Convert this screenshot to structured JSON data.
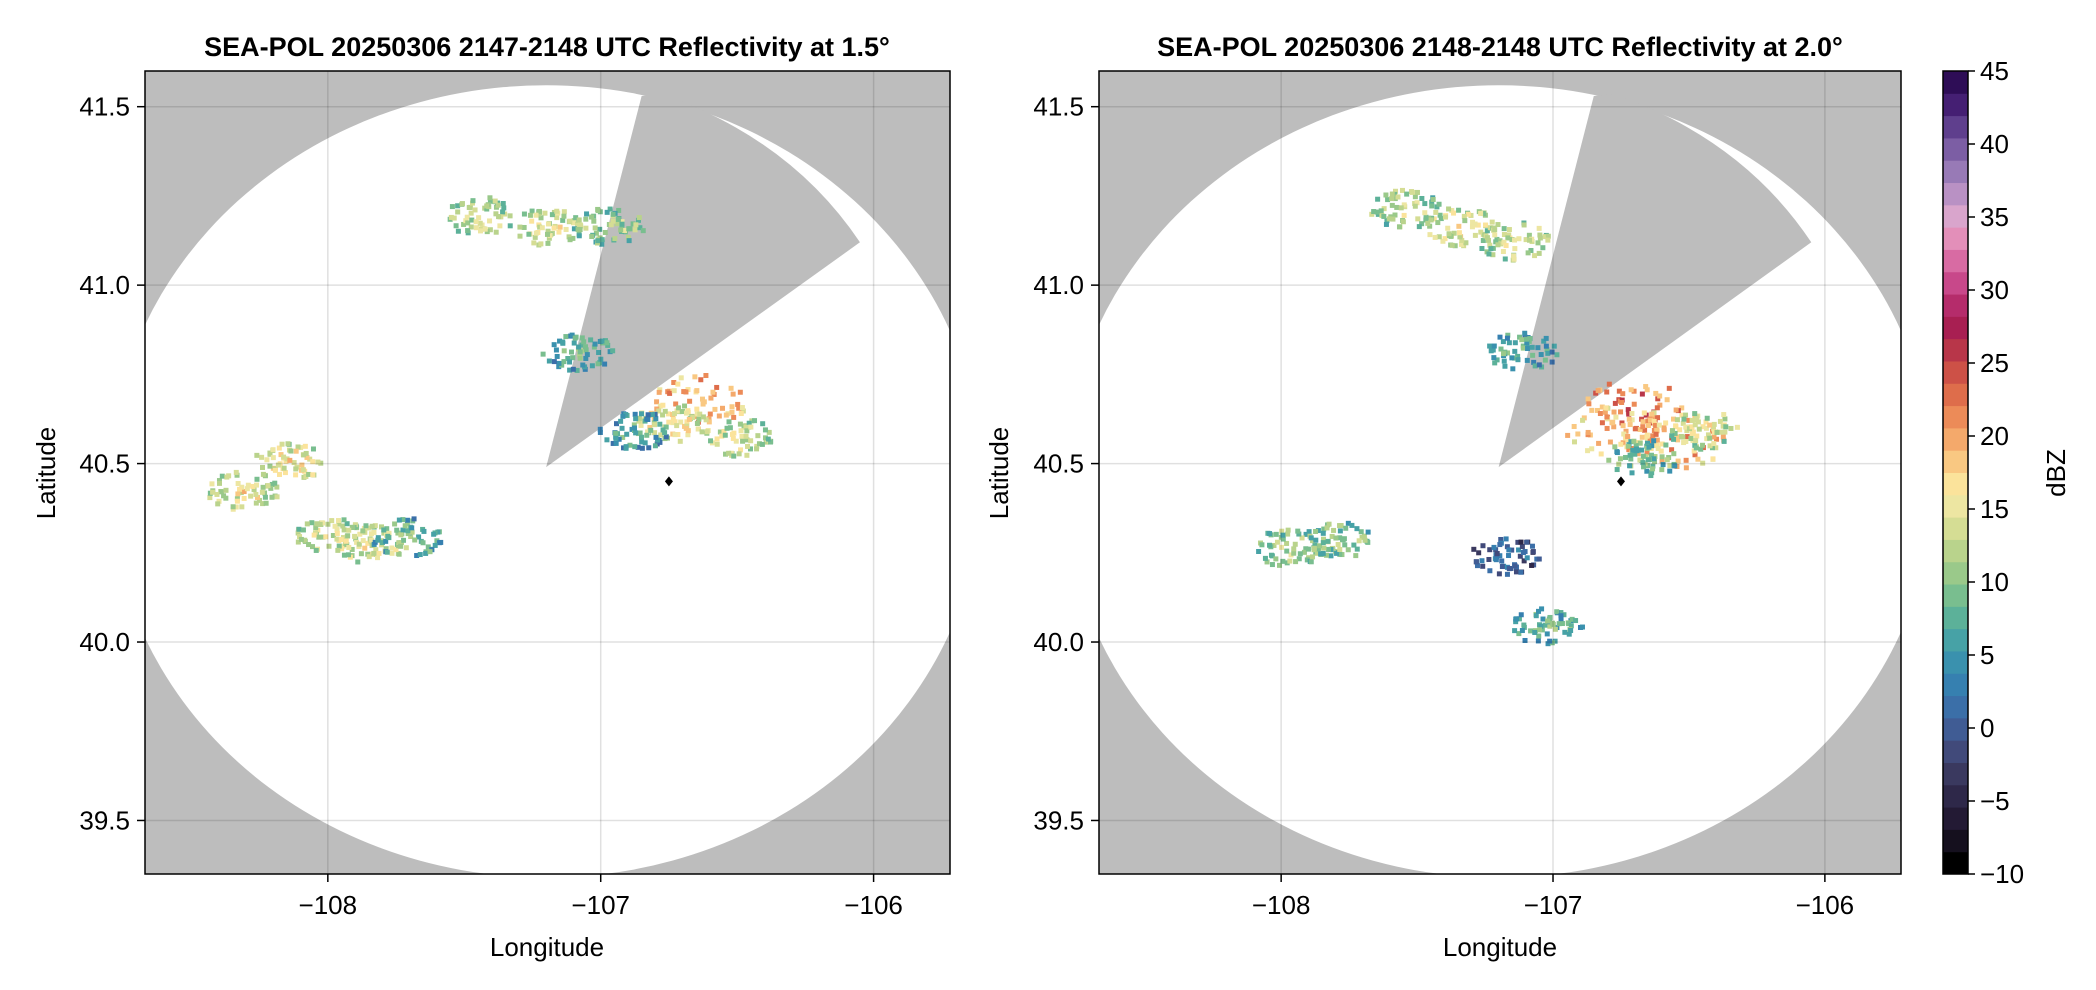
{
  "chart_data": [
    {
      "type": "heatmap",
      "title": "SEA-POL 20250306 2147-2148 UTC Reflectivity at 1.5°",
      "xlabel": "Longitude",
      "ylabel": "Latitude",
      "xlim": [
        -108.67,
        -105.72
      ],
      "ylim": [
        39.35,
        41.6
      ],
      "xticks": [
        -108,
        -107,
        -106
      ],
      "yticks": [
        39.5,
        40.0,
        40.5,
        41.0,
        41.5
      ],
      "xtick_labels": [
        "−108",
        "−107",
        "−106"
      ],
      "ytick_labels": [
        "39.5",
        "40.0",
        "40.5",
        "41.0",
        "41.5"
      ],
      "grid": true,
      "background_color": "#bdbdbd",
      "coverage": {
        "shape": "radar-circle",
        "center": [
          -107.2,
          40.45
        ],
        "lon_radius": 1.6,
        "lat_radius": 1.11,
        "blocked_sector": {
          "apex": [
            -107.2,
            40.49
          ],
          "edge_points": [
            [
              -106.85,
              41.53
            ],
            [
              -106.05,
              41.12
            ]
          ]
        }
      },
      "radar_site": [
        -106.75,
        40.45
      ],
      "echoes": [
        {
          "lon": -107.45,
          "lat": 41.2,
          "dbz": 14
        },
        {
          "lon": -107.2,
          "lat": 41.17,
          "dbz": 15
        },
        {
          "lon": -106.98,
          "lat": 41.17,
          "dbz": 13
        },
        {
          "lon": -107.09,
          "lat": 40.82,
          "dbz": 9
        },
        {
          "lon": -106.65,
          "lat": 40.68,
          "dbz": 22
        },
        {
          "lon": -106.75,
          "lat": 40.62,
          "dbz": 17
        },
        {
          "lon": -106.5,
          "lat": 40.58,
          "dbz": 15
        },
        {
          "lon": -106.88,
          "lat": 40.6,
          "dbz": 8
        },
        {
          "lon": -108.15,
          "lat": 40.51,
          "dbz": 17
        },
        {
          "lon": -108.32,
          "lat": 40.43,
          "dbz": 16
        },
        {
          "lon": -108.0,
          "lat": 40.3,
          "dbz": 15
        },
        {
          "lon": -107.85,
          "lat": 40.28,
          "dbz": 16
        },
        {
          "lon": -107.72,
          "lat": 40.3,
          "dbz": 10
        }
      ]
    },
    {
      "type": "heatmap",
      "title": "SEA-POL 20250306 2148-2148 UTC Reflectivity at 2.0°",
      "xlabel": "Longitude",
      "ylabel": "Latitude",
      "xlim": [
        -108.67,
        -105.72
      ],
      "ylim": [
        39.35,
        41.6
      ],
      "xticks": [
        -108,
        -107,
        -106
      ],
      "yticks": [
        39.5,
        40.0,
        40.5,
        41.0,
        41.5
      ],
      "xtick_labels": [
        "−108",
        "−107",
        "−106"
      ],
      "ytick_labels": [
        "39.5",
        "40.0",
        "40.5",
        "41.0",
        "41.5"
      ],
      "grid": true,
      "background_color": "#bdbdbd",
      "coverage": {
        "shape": "radar-circle",
        "center": [
          -107.2,
          40.45
        ],
        "lon_radius": 1.6,
        "lat_radius": 1.11,
        "blocked_sector": {
          "apex": [
            -107.2,
            40.49
          ],
          "edge_points": [
            [
              -106.85,
              41.53
            ],
            [
              -106.05,
              41.12
            ]
          ]
        }
      },
      "radar_site": [
        -106.75,
        40.45
      ],
      "echoes": [
        {
          "lon": -107.35,
          "lat": 41.17,
          "dbz": 16
        },
        {
          "lon": -107.55,
          "lat": 41.22,
          "dbz": 14
        },
        {
          "lon": -107.15,
          "lat": 41.13,
          "dbz": 15
        },
        {
          "lon": -107.12,
          "lat": 40.82,
          "dbz": 9
        },
        {
          "lon": -106.7,
          "lat": 40.67,
          "dbz": 24
        },
        {
          "lon": -106.78,
          "lat": 40.6,
          "dbz": 20
        },
        {
          "lon": -106.55,
          "lat": 40.57,
          "dbz": 21
        },
        {
          "lon": -106.45,
          "lat": 40.6,
          "dbz": 15
        },
        {
          "lon": -106.68,
          "lat": 40.52,
          "dbz": 11
        },
        {
          "lon": -107.8,
          "lat": 40.29,
          "dbz": 12
        },
        {
          "lon": -107.98,
          "lat": 40.27,
          "dbz": 13
        },
        {
          "lon": -107.18,
          "lat": 40.25,
          "dbz": 3
        },
        {
          "lon": -107.03,
          "lat": 40.05,
          "dbz": 9
        }
      ]
    }
  ],
  "colorbar": {
    "label": "dBZ",
    "min": -10,
    "max": 45,
    "ticks": [
      45,
      40,
      35,
      30,
      25,
      20,
      15,
      10,
      5,
      0,
      -5,
      -10
    ],
    "tick_labels": [
      "45",
      "40",
      "35",
      "30",
      "25",
      "20",
      "15",
      "10",
      "5",
      "0",
      "−5",
      "−10"
    ],
    "colors": [
      "#000000",
      "#15101e",
      "#231a34",
      "#2e2849",
      "#3a395f",
      "#414a7a",
      "#405c94",
      "#3b6fa8",
      "#3680b0",
      "#3a91ae",
      "#47a2a6",
      "#5cb199",
      "#79be8f",
      "#9ac98a",
      "#b9d38c",
      "#d5dd94",
      "#ede6a2",
      "#fbe39b",
      "#f9c882",
      "#f4a96b",
      "#ec8b58",
      "#de6d4b",
      "#cd5147",
      "#b83649",
      "#a81f52",
      "#b52c6b",
      "#c8488a",
      "#d86ba3",
      "#e38fb9",
      "#d9a5cc",
      "#b991c4",
      "#987ab6",
      "#7c5ea4",
      "#5f3f8d",
      "#451f73",
      "#2e0d56"
    ]
  }
}
